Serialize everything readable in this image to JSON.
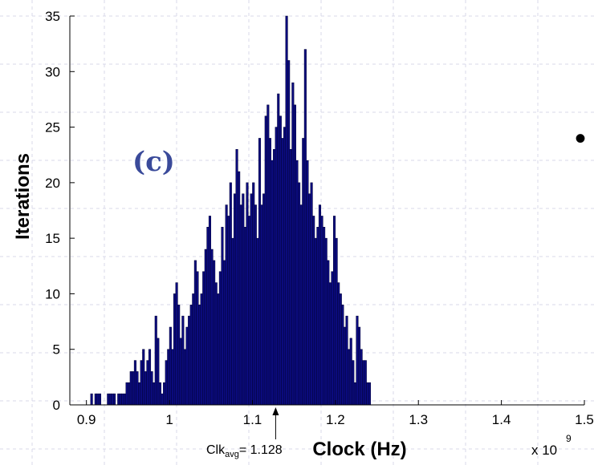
{
  "colors": {
    "bar_fill": "#0b0b7e",
    "bar_edge": "#000033",
    "panel_label": "#3a4a9a",
    "grid": "#d8d8e8"
  },
  "panel_label": "(c)",
  "bullet": "•",
  "chart_data": {
    "type": "bar",
    "title": "",
    "xlabel": "Clock (Hz)",
    "ylabel": "Iterations",
    "x_multiplier_base": "x 10",
    "x_multiplier_exp": "9",
    "xlim": [
      0.88,
      1.5
    ],
    "ylim": [
      0,
      35
    ],
    "xticks": [
      0.9,
      1.0,
      1.1,
      1.2,
      1.3,
      1.4,
      1.5
    ],
    "xtick_labels": [
      "0.9",
      "1",
      "1.1",
      "1.2",
      "1.3",
      "1.4",
      "1.5"
    ],
    "yticks": [
      0,
      5,
      10,
      15,
      20,
      25,
      30,
      35
    ],
    "ytick_labels": [
      "0",
      "5",
      "10",
      "15",
      "20",
      "25",
      "30",
      "35"
    ],
    "bin_width": 0.0025,
    "bin_start": 0.905,
    "values": [
      1,
      0,
      1,
      1,
      1,
      0,
      0,
      0,
      1,
      1,
      1,
      1,
      0,
      1,
      1,
      1,
      1,
      2,
      2,
      3,
      3,
      4,
      3,
      2,
      4,
      5,
      3,
      4,
      5,
      3,
      2,
      8,
      6,
      2,
      1,
      2,
      4,
      5,
      7,
      5,
      10,
      11,
      9,
      6,
      8,
      5,
      7,
      8,
      9,
      10,
      13,
      12,
      9,
      10,
      12,
      14,
      16,
      17,
      14,
      13,
      11,
      10,
      12,
      16,
      13,
      18,
      17,
      20,
      15,
      19,
      23,
      21,
      18,
      19,
      16,
      20,
      17,
      19,
      20,
      18,
      15,
      24,
      18,
      19,
      26,
      27,
      24,
      22,
      23,
      25,
      28,
      26,
      24,
      25,
      35,
      31,
      23,
      29,
      27,
      22,
      20,
      18,
      24,
      32,
      22,
      19,
      20,
      17,
      15,
      16,
      18,
      17,
      16,
      15,
      13,
      11,
      12,
      17,
      15,
      11,
      10,
      9,
      7,
      8,
      5,
      6,
      4,
      2,
      8,
      7,
      5,
      4,
      4,
      2,
      2
    ],
    "annotation": {
      "text_main": "Clk",
      "text_sub": "avg",
      "text_value": "= 1.128",
      "x": 1.128
    },
    "grid": false
  }
}
